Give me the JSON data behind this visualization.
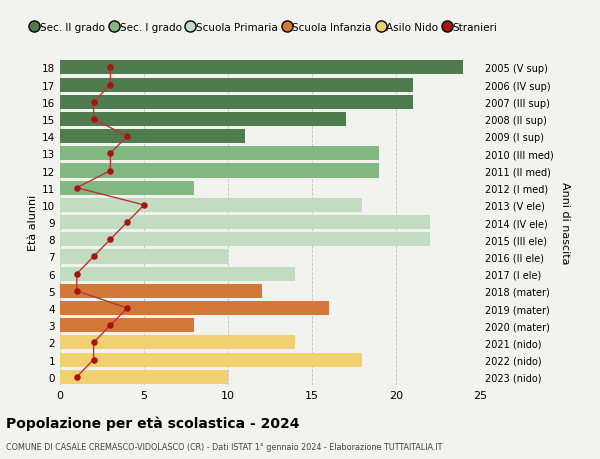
{
  "ages": [
    18,
    17,
    16,
    15,
    14,
    13,
    12,
    11,
    10,
    9,
    8,
    7,
    6,
    5,
    4,
    3,
    2,
    1,
    0
  ],
  "years": [
    "2005 (V sup)",
    "2006 (IV sup)",
    "2007 (III sup)",
    "2008 (II sup)",
    "2009 (I sup)",
    "2010 (III med)",
    "2011 (II med)",
    "2012 (I med)",
    "2013 (V ele)",
    "2014 (IV ele)",
    "2015 (III ele)",
    "2016 (II ele)",
    "2017 (I ele)",
    "2018 (mater)",
    "2019 (mater)",
    "2020 (mater)",
    "2021 (nido)",
    "2022 (nido)",
    "2023 (nido)"
  ],
  "values": [
    24,
    21,
    21,
    17,
    11,
    19,
    19,
    8,
    18,
    22,
    22,
    10,
    14,
    12,
    16,
    8,
    14,
    18,
    10
  ],
  "stranieri": [
    3,
    3,
    2,
    2,
    4,
    3,
    3,
    1,
    5,
    4,
    3,
    2,
    1,
    1,
    4,
    3,
    2,
    2,
    1
  ],
  "categories": {
    "Sec. II grado": {
      "ages": [
        14,
        15,
        16,
        17,
        18
      ],
      "color": "#4e7c4e"
    },
    "Sec. I grado": {
      "ages": [
        11,
        12,
        13
      ],
      "color": "#82b882"
    },
    "Scuola Primaria": {
      "ages": [
        6,
        7,
        8,
        9,
        10
      ],
      "color": "#c2dcc2"
    },
    "Scuola Infanzia": {
      "ages": [
        3,
        4,
        5
      ],
      "color": "#d4783a"
    },
    "Asilo Nido": {
      "ages": [
        0,
        1,
        2
      ],
      "color": "#f0d070"
    }
  },
  "stranieri_color": "#aa1111",
  "stranieri_line_color": "#bb3333",
  "bg_color": "#f2f2ee",
  "title": "Popolazione per età scolastica - 2024",
  "subtitle": "COMUNE DI CASALE CREMASCO-VIDOLASCO (CR) - Dati ISTAT 1° gennaio 2024 - Elaborazione TUTTAITALIA.IT",
  "ylabel_left": "Età alunni",
  "ylabel_right": "Anni di nascita",
  "xlim": [
    0,
    25
  ],
  "legend_order": [
    "Sec. II grado",
    "Sec. I grado",
    "Scuola Primaria",
    "Scuola Infanzia",
    "Asilo Nido",
    "Stranieri"
  ]
}
